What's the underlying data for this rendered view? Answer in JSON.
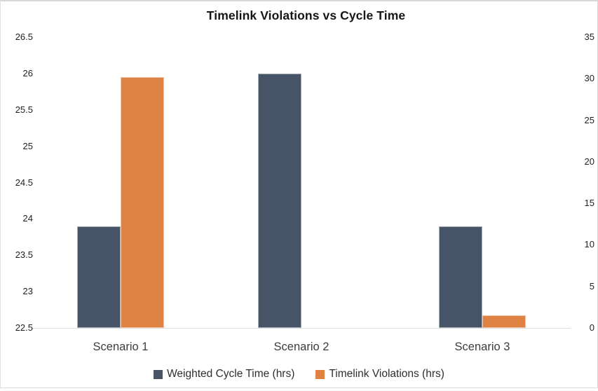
{
  "chart_data": {
    "type": "bar",
    "title": "Timelink Violations vs Cycle Time",
    "categories": [
      "Scenario 1",
      "Scenario 2",
      "Scenario 3"
    ],
    "series": [
      {
        "name": "Weighted Cycle Time (hrs)",
        "axis": "left",
        "color": "#475366",
        "values": [
          23.9,
          26.0,
          23.9
        ]
      },
      {
        "name": "Timelink Violations (hrs)",
        "axis": "right",
        "color": "#de8344",
        "values": [
          30.2,
          0,
          1.5
        ]
      }
    ],
    "left_axis": {
      "min": 22.5,
      "max": 26.5,
      "step": 0.5,
      "tick_labels": [
        "26.5",
        "26",
        "25.5",
        "25",
        "24.5",
        "24",
        "23.5",
        "23",
        "22.5"
      ]
    },
    "right_axis": {
      "min": 0,
      "max": 35,
      "step": 5,
      "tick_labels": [
        "35",
        "30",
        "25",
        "20",
        "15",
        "10",
        "5",
        "0"
      ]
    },
    "legend_position": "bottom",
    "grid": false,
    "background": "#ffffff"
  },
  "colors": {
    "weighted_cycle_time": "#475366",
    "timelink_violations": "#de8344",
    "axis_line": "#e0e0e0",
    "frame_border": "#d7d7d7",
    "title_text": "#161616"
  }
}
